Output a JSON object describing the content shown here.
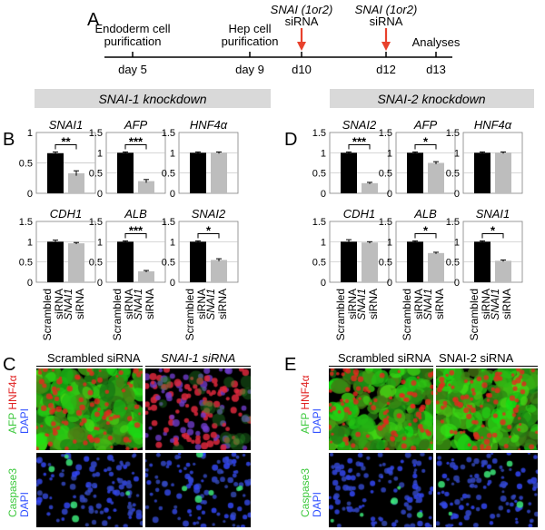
{
  "panel_letters": {
    "a": "A",
    "b": "B",
    "c": "C",
    "d": "D",
    "e": "E"
  },
  "timeline": {
    "events": [
      {
        "top": "Endoderm cell",
        "bottom": "purification",
        "day": "day 5"
      },
      {
        "top": "Hep cell",
        "bottom": "purification",
        "day": "day 9"
      },
      {
        "top": "SNAI (1or2)",
        "bottom": "siRNA",
        "day": "d10"
      },
      {
        "top": "SNAI (1or2)",
        "bottom": "siRNA",
        "day": "d12"
      },
      {
        "top": "Analyses",
        "bottom": "",
        "day": "d13"
      }
    ],
    "arrow_color": "#e8412c"
  },
  "knockdown_titles": {
    "snai1": "SNAI-1 knockdown",
    "snai2": "SNAI-2 knockdown"
  },
  "x_labels": {
    "scrambled_1": "Scrambled",
    "scrambled_2": "siRNA",
    "snai1_1": "SNAI1",
    "snai1_2": "siRNA"
  },
  "colors": {
    "scrambled_bar": "#000000",
    "snai_bar": "#bdbdbd"
  },
  "chart_data": [
    {
      "type": "bar",
      "panel": "B",
      "title": "SNAI1",
      "categories": [
        "Scrambled siRNA",
        "SNAI1 siRNA"
      ],
      "values": [
        0.66,
        0.33
      ],
      "errors": [
        0.02,
        0.04
      ],
      "ylim": [
        0,
        1
      ],
      "yticks": [
        "0",
        "0.5",
        "1"
      ],
      "significance": "**"
    },
    {
      "type": "bar",
      "panel": "B",
      "title": "AFP",
      "categories": [
        "Scrambled siRNA",
        "SNAI1 siRNA"
      ],
      "values": [
        1.0,
        0.3
      ],
      "errors": [
        0.02,
        0.04
      ],
      "ylim": [
        0,
        1.5
      ],
      "yticks": [
        "0",
        "0.5",
        "1",
        "1.5"
      ],
      "significance": "***"
    },
    {
      "type": "bar",
      "panel": "B",
      "title": "HNF4α",
      "categories": [
        "Scrambled siRNA",
        "SNAI1 siRNA"
      ],
      "values": [
        1.0,
        1.0
      ],
      "errors": [
        0.02,
        0.02
      ],
      "ylim": [
        0,
        1.5
      ],
      "yticks": [
        "0",
        "0.5",
        "1",
        "1.5"
      ],
      "significance": ""
    },
    {
      "type": "bar",
      "panel": "B",
      "title": "CDH1",
      "categories": [
        "Scrambled siRNA",
        "SNAI1 siRNA"
      ],
      "values": [
        1.0,
        0.96
      ],
      "errors": [
        0.04,
        0.02
      ],
      "ylim": [
        0,
        1.5
      ],
      "yticks": [
        "0",
        "0.5",
        "1",
        "1.5"
      ],
      "significance": ""
    },
    {
      "type": "bar",
      "panel": "B",
      "title": "ALB",
      "categories": [
        "Scrambled siRNA",
        "SNAI1 siRNA"
      ],
      "values": [
        1.0,
        0.27
      ],
      "errors": [
        0.02,
        0.02
      ],
      "ylim": [
        0,
        1.5
      ],
      "yticks": [
        "0",
        "0.5",
        "1",
        "1.5"
      ],
      "significance": "***"
    },
    {
      "type": "bar",
      "panel": "B",
      "title": "SNAI2",
      "categories": [
        "Scrambled siRNA",
        "SNAI1 siRNA"
      ],
      "values": [
        1.0,
        0.55
      ],
      "errors": [
        0.02,
        0.03
      ],
      "ylim": [
        0,
        1.5
      ],
      "yticks": [
        "0",
        "0.5",
        "1",
        "1.5"
      ],
      "significance": "*"
    },
    {
      "type": "bar",
      "panel": "D",
      "title": "SNAI2",
      "categories": [
        "Scrambled siRNA",
        "SNAI1 siRNA"
      ],
      "values": [
        1.0,
        0.25
      ],
      "errors": [
        0.02,
        0.02
      ],
      "ylim": [
        0,
        1.5
      ],
      "yticks": [
        "0",
        "0.5",
        "1",
        "1.5"
      ],
      "significance": "***"
    },
    {
      "type": "bar",
      "panel": "D",
      "title": "AFP",
      "categories": [
        "Scrambled siRNA",
        "SNAI1 siRNA"
      ],
      "values": [
        1.0,
        0.75
      ],
      "errors": [
        0.02,
        0.03
      ],
      "ylim": [
        0,
        1.5
      ],
      "yticks": [
        "0",
        "0.5",
        "1",
        "1.5"
      ],
      "significance": "*"
    },
    {
      "type": "bar",
      "panel": "D",
      "title": "HNF4α",
      "categories": [
        "Scrambled siRNA",
        "SNAI1 siRNA"
      ],
      "values": [
        1.0,
        1.0
      ],
      "errors": [
        0.02,
        0.02
      ],
      "ylim": [
        0,
        1.5
      ],
      "yticks": [
        "0",
        "0.5",
        "1",
        "1.5"
      ],
      "significance": ""
    },
    {
      "type": "bar",
      "panel": "D",
      "title": "CDH1",
      "categories": [
        "Scrambled siRNA",
        "SNAI1 siRNA"
      ],
      "values": [
        1.0,
        0.98
      ],
      "errors": [
        0.05,
        0.02
      ],
      "ylim": [
        0,
        1.5
      ],
      "yticks": [
        "0",
        "0.5",
        "1",
        "1.5"
      ],
      "significance": ""
    },
    {
      "type": "bar",
      "panel": "D",
      "title": "ALB",
      "categories": [
        "Scrambled siRNA",
        "SNAI1 siRNA"
      ],
      "values": [
        1.0,
        0.72
      ],
      "errors": [
        0.02,
        0.02
      ],
      "ylim": [
        0,
        1.5
      ],
      "yticks": [
        "0",
        "0.5",
        "1",
        "1.5"
      ],
      "significance": "*"
    },
    {
      "type": "bar",
      "panel": "D",
      "title": "SNAI1",
      "categories": [
        "Scrambled siRNA",
        "SNAI1 siRNA"
      ],
      "values": [
        1.0,
        0.53
      ],
      "errors": [
        0.02,
        0.02
      ],
      "ylim": [
        0,
        1.5
      ],
      "yticks": [
        "0",
        "0.5",
        "1",
        "1.5"
      ],
      "significance": "*"
    }
  ],
  "micro_headers": {
    "scrambled": "Scrambled siRNA",
    "snai1": "SNAI-1 siRNA",
    "snai2": "SNAI-2 siRNA"
  },
  "stain_labels": {
    "afp": "AFP",
    "hnf": "HNF4α",
    "dapi": "DAPI",
    "casp": "Caspase3"
  },
  "stain_colors": {
    "afp": "#3ec93e",
    "hnf": "#e02020",
    "dapi": "#3050ff",
    "casp": "#3ec93e"
  }
}
